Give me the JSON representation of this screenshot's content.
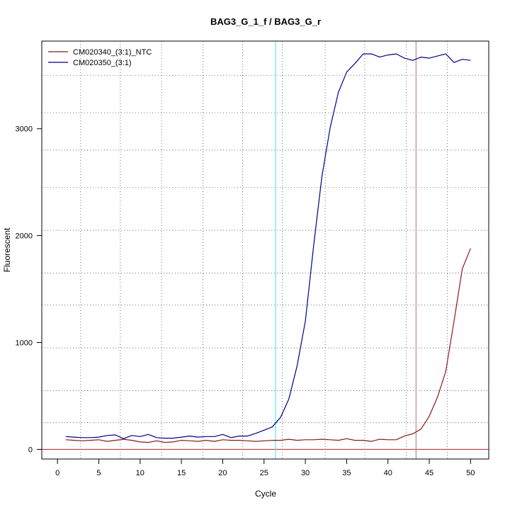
{
  "chart_data": {
    "type": "line",
    "title": "BAG3_G_1_f / BAG3_G_r",
    "xlabel": "Cycle",
    "ylabel": "Fluorescent",
    "xlim": [
      -1.9,
      52.2
    ],
    "ylim": [
      -90,
      3820
    ],
    "xticks": [
      0,
      5,
      10,
      15,
      20,
      25,
      30,
      35,
      40,
      45,
      50
    ],
    "yticks": [
      0,
      1000,
      2000,
      3000
    ],
    "grid": true,
    "grid_x": [
      2.8,
      7.6,
      12.6,
      17.6,
      22.4,
      27.2,
      32.4,
      37.2,
      42.2,
      47.2
    ],
    "grid_y": [
      250,
      550,
      950,
      1350,
      1650,
      2050,
      2450,
      2800,
      3150,
      3500
    ],
    "legend_position": "top-left",
    "series": [
      {
        "name": "CM020340_(3:1)_NTC",
        "color": "#8b1a1a",
        "x": [
          1,
          2,
          3,
          4,
          5,
          6,
          7,
          8,
          9,
          10,
          11,
          12,
          13,
          14,
          15,
          16,
          17,
          18,
          19,
          20,
          21,
          22,
          23,
          24,
          25,
          26,
          27,
          28,
          29,
          30,
          31,
          32,
          33,
          34,
          35,
          36,
          37,
          38,
          39,
          40,
          41,
          42,
          43,
          44,
          45,
          46,
          47,
          48,
          49,
          50
        ],
        "values": [
          90,
          85,
          80,
          85,
          90,
          75,
          85,
          95,
          85,
          70,
          65,
          80,
          65,
          70,
          85,
          80,
          75,
          85,
          75,
          90,
          85,
          85,
          80,
          75,
          80,
          85,
          85,
          95,
          85,
          90,
          90,
          95,
          90,
          85,
          100,
          85,
          85,
          75,
          95,
          90,
          90,
          125,
          145,
          190,
          310,
          490,
          730,
          1200,
          1690,
          1880
        ]
      },
      {
        "name": "CM020350_(3:1)",
        "color": "#00008b",
        "x": [
          1,
          2,
          3,
          4,
          5,
          6,
          7,
          8,
          9,
          10,
          11,
          12,
          13,
          14,
          15,
          16,
          17,
          18,
          19,
          20,
          21,
          22,
          23,
          24,
          25,
          26,
          27,
          28,
          29,
          30,
          31,
          32,
          33,
          34,
          35,
          36,
          37,
          38,
          39,
          40,
          41,
          42,
          43,
          44,
          45,
          46,
          47,
          48,
          49,
          50
        ],
        "values": [
          120,
          115,
          110,
          110,
          115,
          130,
          135,
          100,
          130,
          120,
          140,
          110,
          105,
          105,
          115,
          125,
          115,
          120,
          120,
          140,
          110,
          125,
          125,
          150,
          180,
          210,
          300,
          470,
          780,
          1200,
          1900,
          2550,
          3010,
          3340,
          3530,
          3610,
          3700,
          3700,
          3670,
          3690,
          3700,
          3660,
          3640,
          3670,
          3660,
          3680,
          3700,
          3620,
          3650,
          3640
        ]
      }
    ],
    "vertical_markers": [
      {
        "x": 26.4,
        "color": "#5ee7ef"
      },
      {
        "x": 43.4,
        "color": "#b88a8a"
      }
    ],
    "horizontal_markers": [
      {
        "y": 0,
        "color": "#b22222"
      }
    ]
  }
}
